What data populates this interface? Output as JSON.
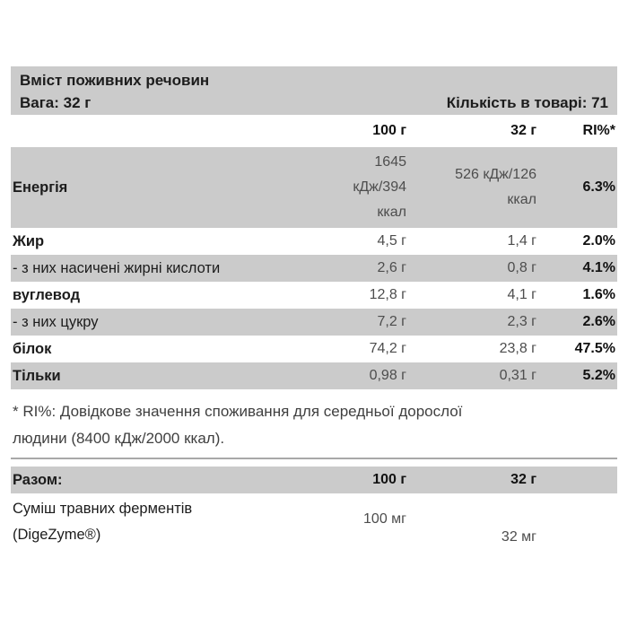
{
  "table": {
    "title": "Вміст поживних речовин",
    "weight": "Вага: 32 г",
    "quantity": "Кількість в товарі: 71",
    "columns": {
      "per100": "100 г",
      "per32": "32 г",
      "ri": "RI%*"
    },
    "rows": [
      {
        "label": "Енергія",
        "bold": true,
        "shade": true,
        "tall": true,
        "per100": "1645 кДж/394 ккал",
        "per32": "526 кДж/126 ккал",
        "ri": "6.3%"
      },
      {
        "label": "Жир",
        "bold": true,
        "shade": false,
        "tall": false,
        "per100": "4,5 г",
        "per32": "1,4 г",
        "ri": "2.0%"
      },
      {
        "label": "- з них насичені жирні кислоти",
        "bold": false,
        "shade": true,
        "tall": false,
        "per100": "2,6 г",
        "per32": "0,8 г",
        "ri": "4.1%"
      },
      {
        "label": "вуглевод",
        "bold": true,
        "shade": false,
        "tall": false,
        "per100": "12,8 г",
        "per32": "4,1 г",
        "ri": "1.6%"
      },
      {
        "label": "- з них цукру",
        "bold": false,
        "shade": true,
        "tall": false,
        "per100": "7,2 г",
        "per32": "2,3 г",
        "ri": "2.6%"
      },
      {
        "label": "білок",
        "bold": true,
        "shade": false,
        "tall": false,
        "per100": "74,2 г",
        "per32": "23,8 г",
        "ri": "47.5%"
      },
      {
        "label": "Тільки",
        "bold": true,
        "shade": true,
        "tall": false,
        "per100": "0,98 г",
        "per32": "0,31 г",
        "ri": "5.2%"
      }
    ],
    "footnote_line1": "* RI%: Довідкове значення споживання для середньої дорослої",
    "footnote_line2": "людини (8400 кДж/2000 ккал).",
    "supplement": {
      "header": "Разом:",
      "per100_col": "100 г",
      "per32_col": "32 г",
      "name_line1": "Суміш травних ферментів",
      "name_line2": "(DigeZyme®)",
      "per100": "100 мг",
      "per32": "32 мг"
    }
  },
  "colors": {
    "row_shade": "#cbcbcb",
    "separator": "#a8a8a8",
    "label_text": "#1c1c1c",
    "value_text": "#4d4d4d"
  }
}
